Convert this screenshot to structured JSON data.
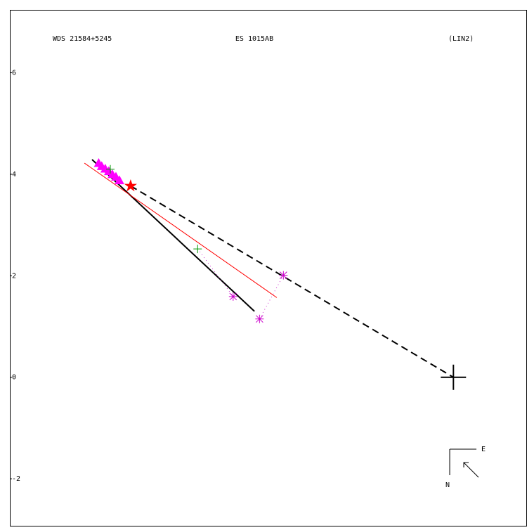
{
  "chart_data": {
    "type": "scatter",
    "title": "WDS 21584+5245",
    "subtitle": "ES 1015AB",
    "annotation": "(LIN2)",
    "compass": {
      "east": "E",
      "north": "N"
    },
    "xlim": [
      -8.74,
      1.45
    ],
    "ylim": [
      -2.94,
      7.24
    ],
    "yticks": [
      6,
      4,
      2,
      0,
      -2
    ],
    "series": [
      {
        "color": "#000000",
        "style": "solid",
        "width": 2,
        "marker": "none",
        "x": [
          -7.12,
          -3.92
        ],
        "values": [
          4.29,
          1.3
        ]
      },
      {
        "color": "#000000",
        "style": "dashed",
        "width": 2,
        "marker": "none",
        "x": [
          -6.36,
          0
        ],
        "values": [
          3.77,
          0
        ]
      },
      {
        "color": "#ff0000",
        "style": "solid",
        "width": 1,
        "marker": "none",
        "x": [
          -7.27,
          -3.48
        ],
        "values": [
          4.22,
          1.57
        ]
      },
      {
        "color": "#cc33cc",
        "style": "dotted",
        "width": 1,
        "marker": "none",
        "x": [
          -5.04,
          -4.34,
          null,
          -3.82,
          -3.35
        ],
        "values": [
          2.53,
          1.59,
          null,
          1.15,
          2.01
        ]
      },
      {
        "color": "#ff00ff",
        "style": "none",
        "marker": "triangle",
        "x": [
          -6.99,
          -6.93,
          -6.86,
          -6.79,
          -6.72,
          -6.65,
          -6.58
        ],
        "values": [
          4.22,
          4.16,
          4.11,
          4.06,
          4.0,
          3.95,
          3.88
        ]
      },
      {
        "color": "#009900",
        "style": "none",
        "marker": "plus",
        "x": [
          -6.76,
          -5.04
        ],
        "values": [
          4.1,
          2.53
        ]
      },
      {
        "color": "#cc00cc",
        "style": "none",
        "marker": "asterisk",
        "x": [
          -4.34,
          -3.82,
          -3.35
        ],
        "values": [
          1.59,
          1.15,
          2.01
        ]
      },
      {
        "color": "#ff0000",
        "style": "none",
        "marker": "star",
        "x": [
          -6.36
        ],
        "values": [
          3.77
        ]
      },
      {
        "color": "#000000",
        "style": "none",
        "marker": "bigplus",
        "x": [
          0
        ],
        "values": [
          0
        ]
      }
    ]
  }
}
